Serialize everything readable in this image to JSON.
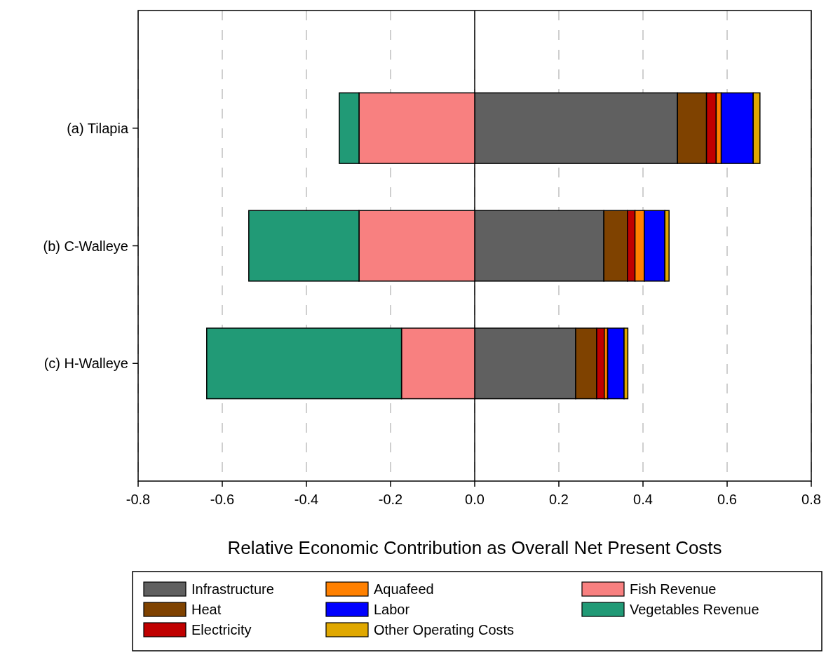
{
  "chart_data": {
    "type": "bar",
    "orientation": "horizontal",
    "stacked": true,
    "xlabel": "Relative Economic Contribution as Overall Net Present Costs",
    "categories": [
      "(a) Tilapia",
      "(b) C-Walleye",
      "(c) H-Walleye"
    ],
    "xlim": [
      -0.8,
      0.8
    ],
    "xticks": [
      {
        "value": -0.8,
        "label": "-0.8"
      },
      {
        "value": -0.6,
        "label": "-0.6"
      },
      {
        "value": -0.4,
        "label": "-0.4"
      },
      {
        "value": -0.2,
        "label": "-0.2"
      },
      {
        "value": 0,
        "label": "0.0"
      },
      {
        "value": 0.2,
        "label": "0.2"
      },
      {
        "value": 0.4,
        "label": "0.4"
      },
      {
        "value": 0.6,
        "label": "0.6"
      },
      {
        "value": 0.8,
        "label": "0.8"
      }
    ],
    "grid": "x",
    "legend": "bottom",
    "series": [
      {
        "name": "Infrastructure",
        "color": "#606060",
        "values": [
          0.482,
          0.307,
          0.24
        ]
      },
      {
        "name": "Heat",
        "color": "#7f4200",
        "values": [
          0.069,
          0.056,
          0.05
        ]
      },
      {
        "name": "Electricity",
        "color": "#c00000",
        "values": [
          0.023,
          0.018,
          0.018
        ]
      },
      {
        "name": "Aquafeed",
        "color": "#ff8000",
        "values": [
          0.012,
          0.022,
          0.008
        ]
      },
      {
        "name": "Labor",
        "color": "#0000ff",
        "values": [
          0.076,
          0.049,
          0.039
        ]
      },
      {
        "name": "Other Operating Costs",
        "color": "#e0a800",
        "values": [
          0.016,
          0.01,
          0.009
        ]
      },
      {
        "name": "Fish Revenue",
        "color": "#f88080",
        "values": [
          -0.275,
          -0.275,
          -0.174
        ]
      },
      {
        "name": "Vegetables Revenue",
        "color": "#219a76",
        "values": [
          -0.047,
          -0.262,
          -0.463
        ]
      }
    ]
  }
}
